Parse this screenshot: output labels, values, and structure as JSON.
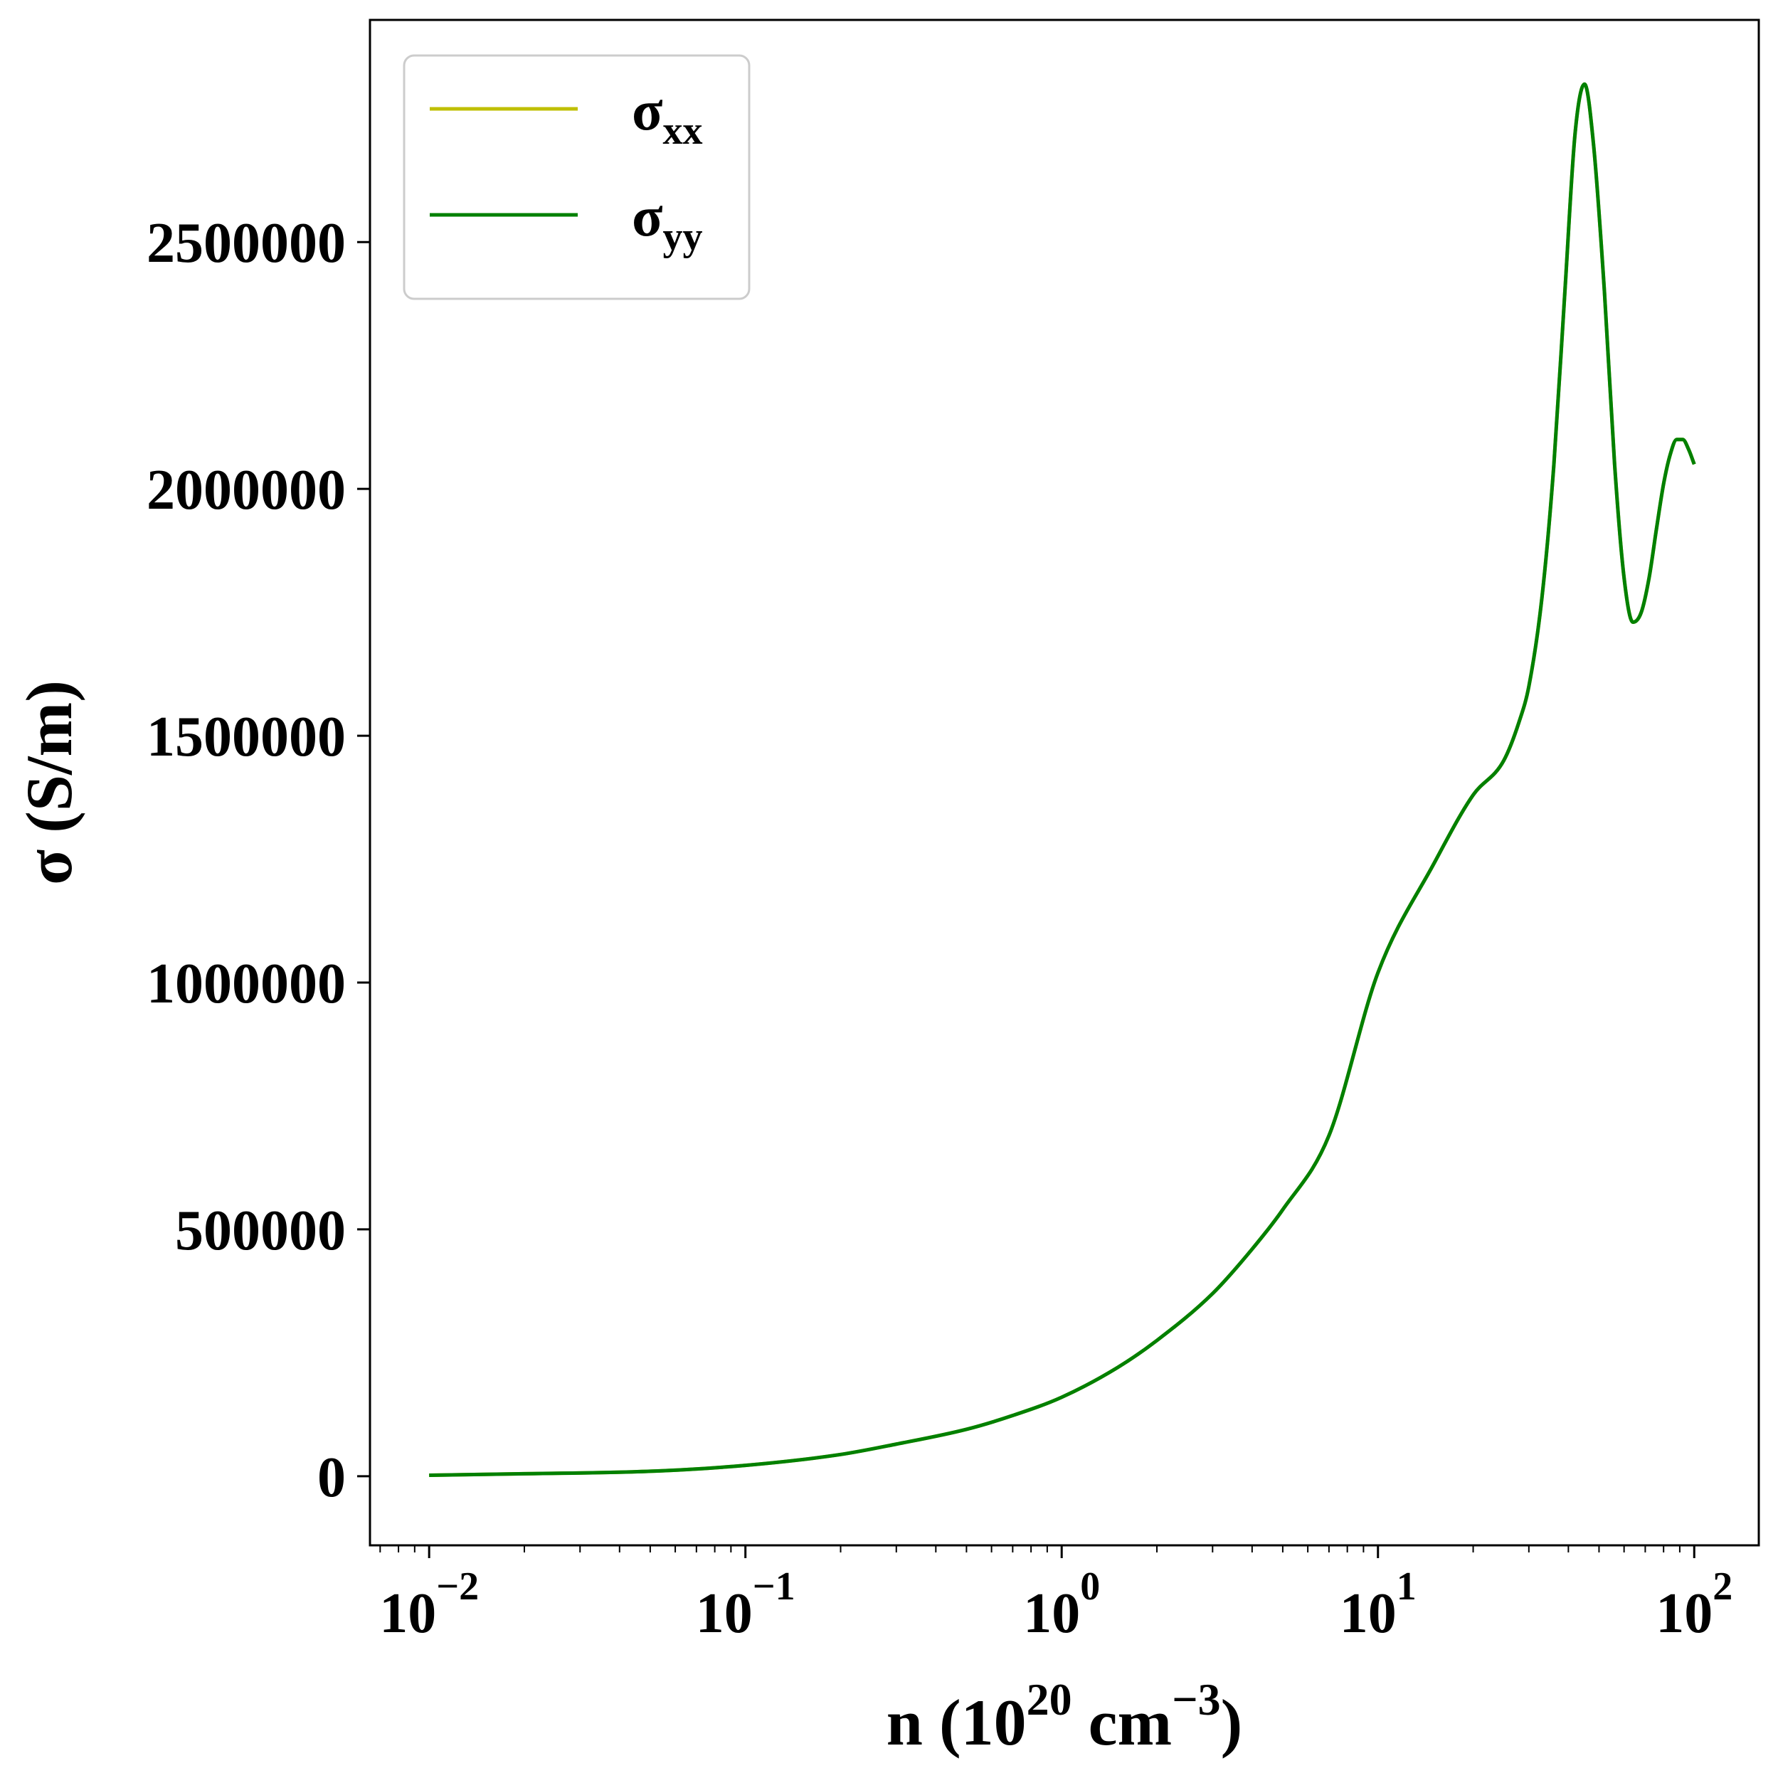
{
  "chart_data": {
    "type": "line",
    "xscale": "log",
    "xlim": [
      0.0065,
      160
    ],
    "ylim": [
      -140000,
      2950000
    ],
    "xlabel": {
      "base": "n (10",
      "sup1": "20",
      "mid": " cm",
      "sup2": "−3",
      "end": ")"
    },
    "ylabel": "σ (S/m)",
    "grid": false,
    "legend_position": "top-left",
    "x_ticks": [
      {
        "value": 0.01,
        "base": "10",
        "exp": "−2"
      },
      {
        "value": 0.1,
        "base": "10",
        "exp": "−1"
      },
      {
        "value": 1,
        "base": "10",
        "exp": "0"
      },
      {
        "value": 10,
        "base": "10",
        "exp": "1"
      },
      {
        "value": 100,
        "base": "10",
        "exp": "2"
      }
    ],
    "y_ticks": [
      {
        "value": 0,
        "label": "0"
      },
      {
        "value": 500000,
        "label": "500000"
      },
      {
        "value": 1000000,
        "label": "1000000"
      },
      {
        "value": 1500000,
        "label": "1500000"
      },
      {
        "value": 2000000,
        "label": "2000000"
      },
      {
        "value": 2500000,
        "label": "2500000"
      }
    ],
    "series": [
      {
        "name": "xx",
        "legend_main": "σ",
        "legend_sub": "xx",
        "color": "#bfbf00",
        "x": [
          0.01,
          0.02,
          0.05,
          0.1,
          0.2,
          0.3,
          0.5,
          0.7,
          1.0,
          1.5,
          2,
          3,
          4,
          5,
          7,
          10,
          15,
          20,
          25,
          28,
          30,
          33,
          36,
          39,
          42,
          45,
          48,
          52,
          56,
          60,
          64,
          68,
          72,
          76,
          80,
          84,
          88,
          92,
          96,
          100
        ],
        "y": [
          2000,
          5000,
          10000,
          22000,
          44000,
          65000,
          95000,
          123000,
          160000,
          220000,
          275000,
          370000,
          460000,
          540000,
          690000,
          1020000,
          1240000,
          1380000,
          1450000,
          1530000,
          1600000,
          1780000,
          2050000,
          2400000,
          2720000,
          2820000,
          2700000,
          2400000,
          2050000,
          1820000,
          1730000,
          1750000,
          1820000,
          1920000,
          2010000,
          2070000,
          2100000,
          2100000,
          2080000,
          2050000
        ]
      },
      {
        "name": "yy",
        "legend_main": "σ",
        "legend_sub": "yy",
        "color": "#008000",
        "x": [
          0.01,
          0.02,
          0.05,
          0.1,
          0.2,
          0.3,
          0.5,
          0.7,
          1.0,
          1.5,
          2,
          3,
          4,
          5,
          7,
          10,
          15,
          20,
          25,
          28,
          30,
          33,
          36,
          39,
          42,
          45,
          48,
          52,
          56,
          60,
          64,
          68,
          72,
          76,
          80,
          84,
          88,
          92,
          96,
          100
        ],
        "y": [
          2000,
          5000,
          10000,
          22000,
          44000,
          65000,
          95000,
          123000,
          160000,
          220000,
          275000,
          370000,
          460000,
          540000,
          690000,
          1020000,
          1240000,
          1380000,
          1450000,
          1530000,
          1600000,
          1780000,
          2050000,
          2400000,
          2720000,
          2820000,
          2700000,
          2400000,
          2050000,
          1820000,
          1730000,
          1750000,
          1820000,
          1920000,
          2010000,
          2070000,
          2100000,
          2100000,
          2080000,
          2050000
        ]
      }
    ]
  }
}
